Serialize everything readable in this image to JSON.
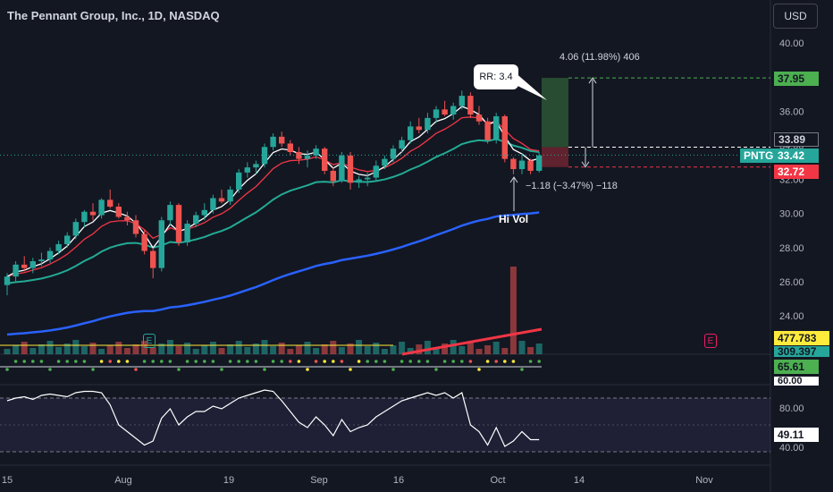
{
  "header": {
    "title": "The Pennant Group, Inc., 1D, NASDAQ",
    "currency": "USD"
  },
  "colors": {
    "bg": "#131722",
    "up": "#26a69a",
    "down": "#ef5350",
    "ema_fast": "#ffffff",
    "ema_mid": "#f23645",
    "ema_slow": "#22ab94",
    "sma_long": "#2962ff",
    "target": "#4caf50",
    "stop": "#f23645"
  },
  "price_axis": {
    "ticks": [
      "40.00",
      "38.00",
      "36.00",
      "34.00",
      "32.00",
      "30.00",
      "28.00",
      "26.00",
      "24.00"
    ]
  },
  "time_axis": {
    "labels": [
      "15",
      "Aug",
      "19",
      "Sep",
      "16",
      "Oct",
      "14",
      "Nov"
    ]
  },
  "price_tags": {
    "target": "37.95",
    "entry": "33.89",
    "symbol": "PNTG",
    "last": "33.42",
    "stop": "32.72",
    "volume_ma": "477.783 K",
    "volume": "309.397 K",
    "indicator_top": "65.61",
    "indicator_top2": "60.00",
    "rsi_value": "49.11",
    "rsi_80": "80.00",
    "rsi_40": "40.00"
  },
  "annotations": {
    "rr_callout": "RR: 3.4",
    "target_info": "4.06 (11.98%) 406",
    "stop_info": "−1.18 (−3.47%) −118",
    "hi_vol": "Hi Vol",
    "earnings_marker": "E"
  },
  "chart_data": {
    "type": "candlestick",
    "ylim": [
      22.5,
      40.5
    ],
    "candles": [
      [
        25.8,
        26.5,
        25.2,
        26.3
      ],
      [
        26.3,
        27.2,
        26.0,
        27.0
      ],
      [
        27.0,
        27.5,
        26.6,
        26.8
      ],
      [
        26.8,
        27.4,
        26.5,
        27.2
      ],
      [
        27.2,
        27.7,
        26.9,
        27.3
      ],
      [
        27.3,
        28.0,
        27.1,
        27.8
      ],
      [
        27.8,
        28.4,
        27.6,
        28.2
      ],
      [
        28.2,
        28.9,
        28.0,
        28.7
      ],
      [
        28.7,
        29.7,
        28.5,
        29.5
      ],
      [
        29.5,
        30.2,
        29.2,
        30.1
      ],
      [
        30.1,
        30.6,
        29.6,
        29.9
      ],
      [
        29.9,
        30.9,
        29.7,
        30.8
      ],
      [
        30.8,
        31.4,
        30.3,
        30.4
      ],
      [
        30.4,
        30.6,
        29.7,
        29.8
      ],
      [
        29.8,
        30.1,
        29.3,
        29.6
      ],
      [
        29.6,
        29.9,
        28.6,
        28.8
      ],
      [
        28.8,
        29.0,
        27.6,
        27.8
      ],
      [
        27.8,
        28.0,
        26.2,
        26.8
      ],
      [
        26.8,
        29.8,
        26.6,
        29.6
      ],
      [
        29.6,
        30.7,
        29.3,
        30.5
      ],
      [
        30.5,
        30.6,
        28.1,
        28.3
      ],
      [
        28.3,
        29.6,
        28.1,
        29.4
      ],
      [
        29.4,
        30.1,
        29.2,
        29.9
      ],
      [
        29.9,
        30.6,
        29.6,
        30.2
      ],
      [
        30.2,
        31.1,
        30.0,
        30.9
      ],
      [
        30.9,
        31.4,
        30.6,
        30.7
      ],
      [
        30.7,
        31.6,
        30.5,
        31.4
      ],
      [
        31.4,
        32.6,
        31.2,
        32.4
      ],
      [
        32.4,
        33.0,
        32.1,
        32.7
      ],
      [
        32.7,
        33.1,
        32.3,
        32.9
      ],
      [
        32.9,
        34.1,
        32.7,
        33.9
      ],
      [
        33.9,
        34.7,
        33.7,
        34.5
      ],
      [
        34.5,
        34.8,
        33.9,
        34.1
      ],
      [
        34.1,
        34.3,
        33.4,
        33.6
      ],
      [
        33.6,
        33.9,
        32.9,
        33.2
      ],
      [
        33.2,
        33.7,
        32.7,
        33.4
      ],
      [
        33.4,
        34.0,
        33.2,
        33.8
      ],
      [
        33.8,
        33.9,
        32.3,
        32.5
      ],
      [
        32.5,
        32.7,
        31.6,
        31.9
      ],
      [
        31.9,
        33.6,
        31.8,
        33.4
      ],
      [
        33.4,
        33.6,
        31.4,
        31.8
      ],
      [
        31.8,
        32.2,
        31.5,
        32.0
      ],
      [
        32.0,
        32.4,
        31.6,
        32.1
      ],
      [
        32.1,
        33.1,
        31.9,
        32.8
      ],
      [
        32.8,
        33.4,
        32.6,
        33.2
      ],
      [
        33.2,
        34.0,
        33.0,
        33.8
      ],
      [
        33.8,
        34.5,
        33.6,
        34.3
      ],
      [
        34.3,
        35.4,
        34.1,
        35.1
      ],
      [
        35.1,
        35.6,
        34.7,
        34.9
      ],
      [
        34.9,
        35.9,
        34.7,
        35.6
      ],
      [
        35.6,
        36.3,
        35.3,
        36.1
      ],
      [
        36.1,
        36.6,
        35.7,
        35.8
      ],
      [
        35.8,
        36.5,
        35.5,
        36.3
      ],
      [
        36.3,
        37.2,
        36.1,
        36.9
      ],
      [
        36.9,
        37.1,
        35.6,
        35.8
      ],
      [
        35.8,
        36.3,
        35.2,
        35.4
      ],
      [
        35.4,
        35.6,
        34.1,
        34.3
      ],
      [
        34.3,
        35.9,
        34.1,
        35.7
      ],
      [
        35.7,
        35.8,
        33.0,
        33.2
      ],
      [
        33.2,
        33.3,
        32.3,
        32.6
      ],
      [
        32.6,
        33.5,
        32.3,
        33.1
      ],
      [
        33.1,
        33.2,
        32.3,
        32.5
      ],
      [
        32.5,
        33.6,
        32.4,
        33.4
      ]
    ]
  }
}
